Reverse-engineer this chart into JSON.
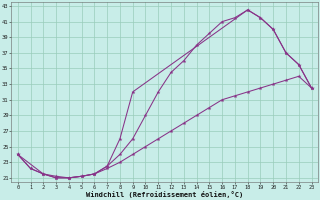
{
  "bg_color": "#c8ede8",
  "grid_color": "#99ccbb",
  "line_color": "#883388",
  "xlim": [
    -0.5,
    23.5
  ],
  "ylim": [
    20.5,
    43.5
  ],
  "xticks": [
    0,
    1,
    2,
    3,
    4,
    5,
    6,
    7,
    8,
    9,
    10,
    11,
    12,
    13,
    14,
    15,
    16,
    17,
    18,
    19,
    20,
    21,
    22,
    23
  ],
  "yticks": [
    21,
    23,
    25,
    27,
    29,
    31,
    33,
    35,
    37,
    39,
    41,
    43
  ],
  "xlabel": "Windchill (Refroidissement éolien,°C)",
  "line1_x": [
    0,
    1,
    2,
    3,
    4,
    5,
    6,
    7,
    8,
    9,
    10,
    11,
    12,
    13,
    14,
    15,
    16,
    17,
    18,
    19,
    20,
    21,
    22,
    23
  ],
  "line1_y": [
    24,
    22.2,
    21.5,
    21.0,
    21.0,
    21.2,
    21.5,
    22.5,
    24,
    26,
    29,
    32,
    34.5,
    36,
    38,
    39.5,
    41,
    41.5,
    42.5,
    41.5,
    40,
    37,
    35.5,
    32.5
  ],
  "line2_x": [
    0,
    1,
    2,
    3,
    4,
    5,
    6,
    7,
    8,
    9,
    10,
    11,
    12,
    13,
    14,
    15,
    16,
    17,
    18,
    19,
    20,
    21,
    22,
    23
  ],
  "line2_y": [
    24,
    22.2,
    21.5,
    21.0,
    21.0,
    21.2,
    21.5,
    22.2,
    23,
    24,
    25,
    26,
    27,
    28,
    29,
    30,
    31,
    31.5,
    32,
    32.5,
    33,
    33.5,
    34,
    32.5
  ],
  "line3_x": [
    0,
    2,
    3,
    4,
    5,
    6,
    7,
    8,
    9,
    18,
    19,
    20,
    21,
    22,
    23
  ],
  "line3_y": [
    24,
    21.5,
    21.2,
    21.0,
    21.2,
    21.5,
    22.5,
    26,
    32,
    42.5,
    41.5,
    40,
    37,
    35.5,
    32.5
  ]
}
